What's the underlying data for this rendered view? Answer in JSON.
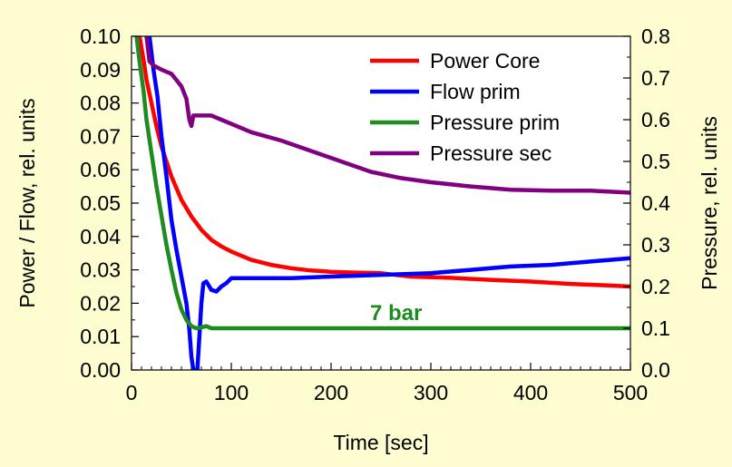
{
  "chart_data": {
    "type": "line",
    "title": "",
    "xlabel": "Time [sec]",
    "ylabel_left": "Power / Flow, rel. units",
    "ylabel_right": "Pressure, rel. units",
    "xlim": [
      0,
      500
    ],
    "ylim_left": [
      0,
      0.1
    ],
    "ylim_right": [
      0,
      0.8
    ],
    "x_ticks": [
      "0",
      "100",
      "200",
      "300",
      "400",
      "500"
    ],
    "y_left_ticks": [
      "0.00",
      "0.01",
      "0.02",
      "0.03",
      "0.04",
      "0.05",
      "0.06",
      "0.07",
      "0.08",
      "0.09",
      "0.10"
    ],
    "y_right_ticks": [
      "0.0",
      "0.1",
      "0.2",
      "0.3",
      "0.4",
      "0.5",
      "0.6",
      "0.7",
      "0.8"
    ],
    "grid": false,
    "legend_position": "top-right",
    "annotation": "7 bar",
    "annotation_color": "#1e8c1e",
    "background_color": "#fdfdd0",
    "plot_background_color": "#ffffff",
    "series": [
      {
        "name": "Power Core",
        "color": "#ff0000",
        "axis": "left",
        "points": [
          [
            8,
            0.1
          ],
          [
            12,
            0.093
          ],
          [
            15,
            0.087
          ],
          [
            20,
            0.08
          ],
          [
            25,
            0.073
          ],
          [
            30,
            0.067
          ],
          [
            40,
            0.058
          ],
          [
            50,
            0.051
          ],
          [
            60,
            0.046
          ],
          [
            70,
            0.042
          ],
          [
            80,
            0.039
          ],
          [
            90,
            0.037
          ],
          [
            100,
            0.0355
          ],
          [
            120,
            0.033
          ],
          [
            140,
            0.0315
          ],
          [
            160,
            0.0305
          ],
          [
            180,
            0.0298
          ],
          [
            200,
            0.0294
          ],
          [
            220,
            0.0292
          ],
          [
            250,
            0.029
          ],
          [
            280,
            0.028
          ],
          [
            320,
            0.0276
          ],
          [
            360,
            0.027
          ],
          [
            400,
            0.0265
          ],
          [
            440,
            0.0258
          ],
          [
            480,
            0.0253
          ],
          [
            500,
            0.025
          ]
        ]
      },
      {
        "name": "Flow prim",
        "color": "#0000ff",
        "axis": "left",
        "points": [
          [
            18,
            0.1
          ],
          [
            22,
            0.09
          ],
          [
            26,
            0.082
          ],
          [
            30,
            0.07
          ],
          [
            35,
            0.058
          ],
          [
            40,
            0.045
          ],
          [
            45,
            0.036
          ],
          [
            50,
            0.028
          ],
          [
            55,
            0.02
          ],
          [
            58,
            0.012
          ],
          [
            60,
            0.004
          ],
          [
            62,
            0.0
          ],
          [
            66,
            0.0
          ],
          [
            68,
            0.01
          ],
          [
            70,
            0.02
          ],
          [
            72,
            0.026
          ],
          [
            75,
            0.0265
          ],
          [
            80,
            0.024
          ],
          [
            85,
            0.0235
          ],
          [
            90,
            0.025
          ],
          [
            95,
            0.026
          ],
          [
            100,
            0.0275
          ],
          [
            120,
            0.0275
          ],
          [
            160,
            0.0275
          ],
          [
            200,
            0.028
          ],
          [
            250,
            0.0285
          ],
          [
            300,
            0.029
          ],
          [
            340,
            0.03
          ],
          [
            380,
            0.031
          ],
          [
            420,
            0.0315
          ],
          [
            460,
            0.0325
          ],
          [
            500,
            0.0335
          ]
        ]
      },
      {
        "name": "Pressure prim",
        "color": "#1e8c1e",
        "axis": "right",
        "points": [
          [
            5,
            0.8
          ],
          [
            8,
            0.74
          ],
          [
            12,
            0.67
          ],
          [
            15,
            0.6
          ],
          [
            20,
            0.52
          ],
          [
            25,
            0.44
          ],
          [
            30,
            0.37
          ],
          [
            35,
            0.3
          ],
          [
            40,
            0.24
          ],
          [
            45,
            0.185
          ],
          [
            50,
            0.145
          ],
          [
            55,
            0.12
          ],
          [
            60,
            0.105
          ],
          [
            65,
            0.1
          ],
          [
            70,
            0.102
          ],
          [
            75,
            0.105
          ],
          [
            80,
            0.1
          ],
          [
            100,
            0.1
          ],
          [
            200,
            0.1
          ],
          [
            300,
            0.1
          ],
          [
            400,
            0.1
          ],
          [
            500,
            0.1
          ]
        ]
      },
      {
        "name": "Pressure sec",
        "color": "#800080",
        "axis": "right",
        "points": [
          [
            15,
            0.8
          ],
          [
            18,
            0.74
          ],
          [
            22,
            0.73
          ],
          [
            30,
            0.72
          ],
          [
            40,
            0.71
          ],
          [
            50,
            0.68
          ],
          [
            55,
            0.65
          ],
          [
            58,
            0.6
          ],
          [
            60,
            0.585
          ],
          [
            62,
            0.61
          ],
          [
            70,
            0.61
          ],
          [
            80,
            0.61
          ],
          [
            90,
            0.6
          ],
          [
            100,
            0.59
          ],
          [
            120,
            0.57
          ],
          [
            150,
            0.55
          ],
          [
            180,
            0.525
          ],
          [
            210,
            0.5
          ],
          [
            240,
            0.475
          ],
          [
            270,
            0.46
          ],
          [
            300,
            0.45
          ],
          [
            340,
            0.44
          ],
          [
            380,
            0.432
          ],
          [
            420,
            0.43
          ],
          [
            460,
            0.43
          ],
          [
            500,
            0.425
          ]
        ]
      }
    ]
  }
}
